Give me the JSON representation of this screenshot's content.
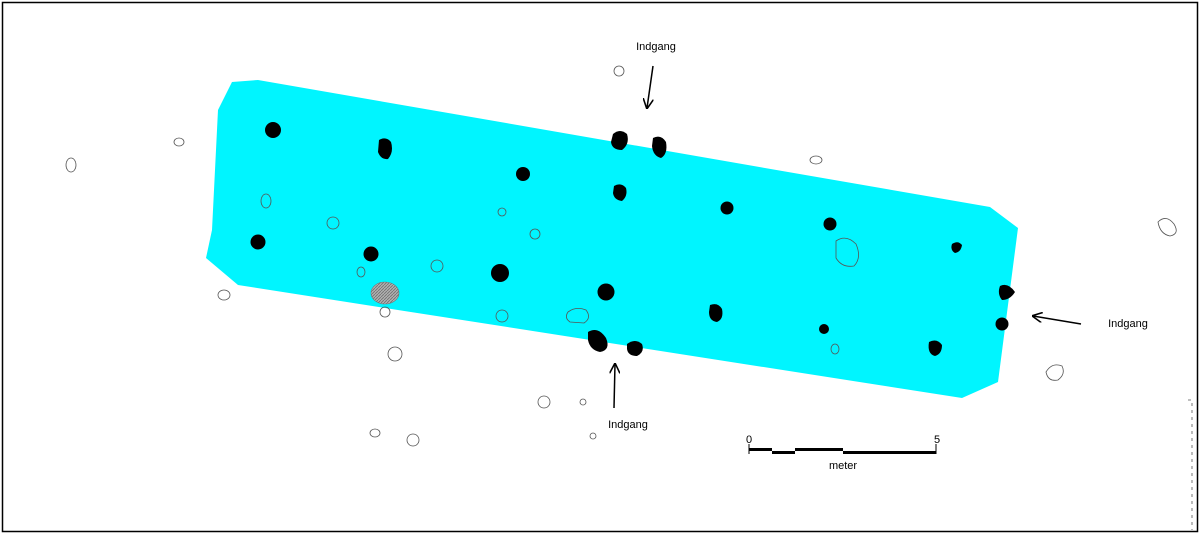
{
  "plan": {
    "house_fill": "#00f5ff",
    "post_fill": "#000000",
    "hatched_fill": "#9a9a9a"
  },
  "labels": {
    "entrance_top": "Indgang",
    "entrance_bottom": "Indgang",
    "entrance_right": "Indgang"
  },
  "scale_bar": {
    "start_label": "0",
    "end_label": "5",
    "unit": "meter"
  }
}
